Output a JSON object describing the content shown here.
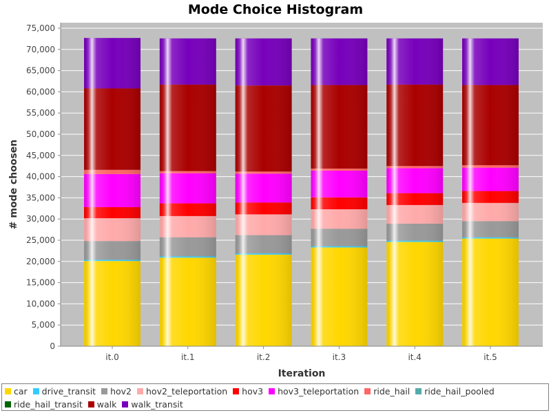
{
  "chart_data": {
    "type": "bar",
    "stacked": true,
    "title": "Mode Choice Histogram",
    "xlabel": "Iteration",
    "ylabel": "# mode choosen",
    "ylim": [
      0,
      75000
    ],
    "yticks": [
      "0",
      "5,000",
      "10,000",
      "15,000",
      "20,000",
      "25,000",
      "30,000",
      "35,000",
      "40,000",
      "45,000",
      "50,000",
      "55,000",
      "60,000",
      "65,000",
      "70,000",
      "75,000"
    ],
    "ytick_values": [
      0,
      5000,
      10000,
      15000,
      20000,
      25000,
      30000,
      35000,
      40000,
      45000,
      50000,
      55000,
      60000,
      65000,
      70000,
      75000
    ],
    "categories": [
      "it.0",
      "it.1",
      "it.2",
      "it.3",
      "it.4",
      "it.5"
    ],
    "grid": true,
    "legend_position": "bottom",
    "series": [
      {
        "name": "car",
        "color": "#ffd700",
        "values": [
          20100,
          20900,
          21600,
          23300,
          24600,
          25400
        ]
      },
      {
        "name": "drive_transit",
        "color": "#33ccff",
        "values": [
          300,
          300,
          300,
          300,
          300,
          300
        ]
      },
      {
        "name": "hov2",
        "color": "#999999",
        "values": [
          4400,
          4500,
          4300,
          4100,
          4000,
          3800
        ]
      },
      {
        "name": "hov2_teleportation",
        "color": "#ffaaaa",
        "values": [
          5400,
          5000,
          4900,
          4600,
          4400,
          4300
        ]
      },
      {
        "name": "hov3",
        "color": "#ff0000",
        "values": [
          2600,
          3000,
          2800,
          2800,
          2800,
          2800
        ]
      },
      {
        "name": "hov3_teleportation",
        "color": "#ff00ff",
        "values": [
          7800,
          7100,
          6800,
          6300,
          5900,
          5500
        ]
      },
      {
        "name": "ride_hail",
        "color": "#ff6666",
        "values": [
          1000,
          500,
          500,
          500,
          500,
          600
        ]
      },
      {
        "name": "ride_hail_pooled",
        "color": "#55aaaa",
        "values": [
          0,
          0,
          0,
          0,
          0,
          0
        ]
      },
      {
        "name": "ride_hail_transit",
        "color": "#006600",
        "values": [
          0,
          0,
          0,
          0,
          0,
          0
        ]
      },
      {
        "name": "walk",
        "color": "#aa0000",
        "values": [
          19200,
          20400,
          20300,
          19700,
          19200,
          18900
        ]
      },
      {
        "name": "walk_transit",
        "color": "#7700bb",
        "values": [
          11900,
          10900,
          11100,
          11000,
          10900,
          11000
        ]
      }
    ]
  }
}
